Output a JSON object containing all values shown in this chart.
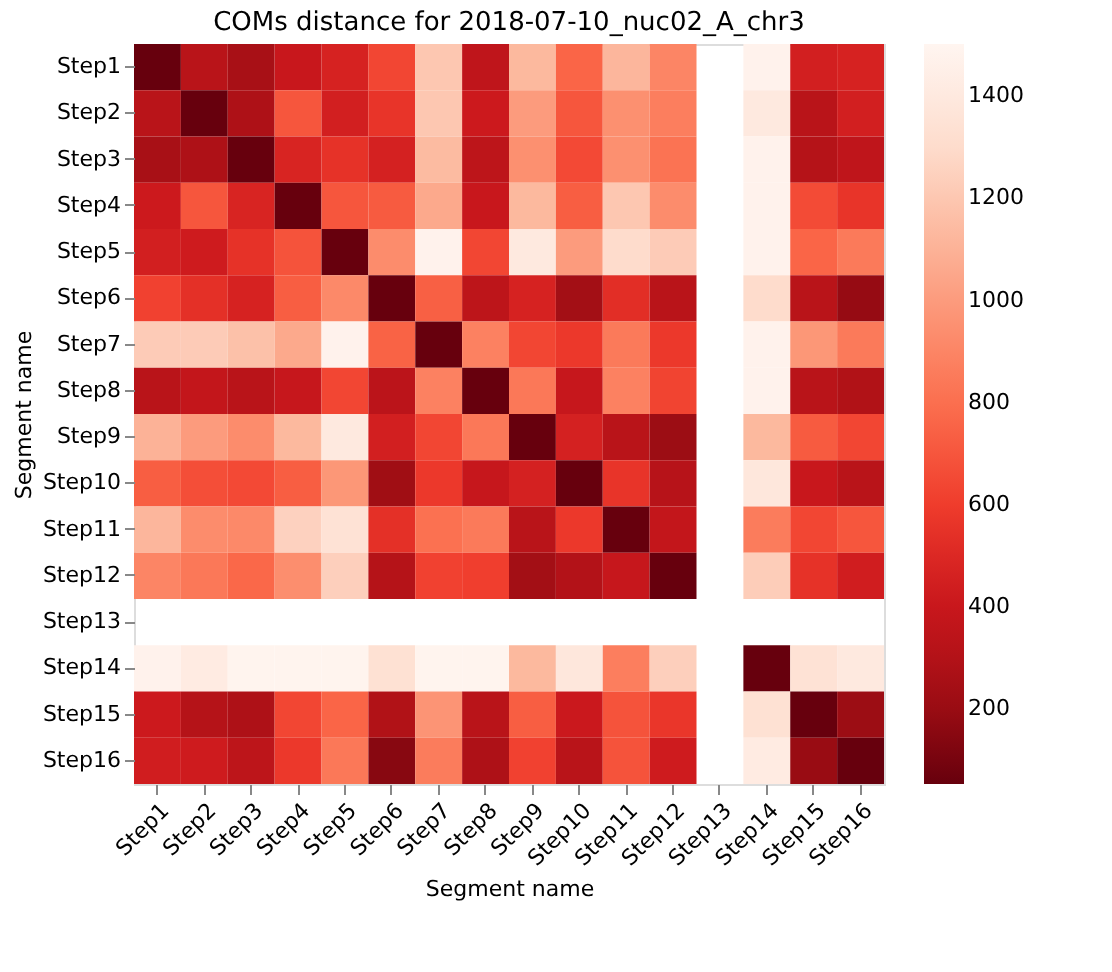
{
  "chart_data": {
    "type": "heatmap",
    "title": "COMs distance for 2018-07-10_nuc02_A_chr3",
    "xlabel": "Segment name",
    "ylabel": "Segment name",
    "categories": [
      "Step1",
      "Step2",
      "Step3",
      "Step4",
      "Step5",
      "Step6",
      "Step7",
      "Step8",
      "Step9",
      "Step10",
      "Step11",
      "Step12",
      "Step13",
      "Step14",
      "Step15",
      "Step16"
    ],
    "y_categories": [
      "Step1",
      "Step2",
      "Step3",
      "Step4",
      "Step5",
      "Step6",
      "Step7",
      "Step8",
      "Step9",
      "Step10",
      "Step11",
      "Step12",
      "Step13",
      "Step14",
      "Step15",
      "Step16"
    ],
    "cells": [
      [
        54,
        330,
        250,
        400,
        470,
        640,
        1200,
        360,
        1130,
        760,
        1120,
        900,
        null,
        1480,
        450,
        470
      ],
      [
        330,
        54,
        280,
        700,
        450,
        560,
        1200,
        420,
        1000,
        700,
        950,
        870,
        null,
        1400,
        330,
        450
      ],
      [
        250,
        280,
        54,
        480,
        550,
        460,
        1140,
        350,
        950,
        650,
        950,
        820,
        null,
        1480,
        310,
        360
      ],
      [
        420,
        700,
        480,
        54,
        700,
        720,
        1060,
        400,
        1130,
        730,
        1200,
        930,
        null,
        1480,
        660,
        560
      ],
      [
        450,
        430,
        550,
        690,
        54,
        930,
        1480,
        640,
        1400,
        1000,
        1300,
        1220,
        null,
        1480,
        760,
        850
      ],
      [
        620,
        540,
        470,
        730,
        920,
        54,
        740,
        350,
        470,
        230,
        530,
        330,
        null,
        1300,
        330,
        190
      ],
      [
        1220,
        1220,
        1170,
        1060,
        1480,
        750,
        54,
        880,
        640,
        580,
        850,
        580,
        null,
        1480,
        980,
        850
      ],
      [
        330,
        380,
        330,
        390,
        640,
        340,
        880,
        54,
        840,
        390,
        880,
        630,
        null,
        1480,
        330,
        290
      ],
      [
        1100,
        1000,
        930,
        1130,
        1400,
        450,
        640,
        840,
        54,
        460,
        330,
        210,
        null,
        1130,
        720,
        640
      ],
      [
        730,
        670,
        650,
        730,
        980,
        220,
        580,
        390,
        460,
        54,
        560,
        320,
        null,
        1380,
        400,
        330
      ],
      [
        1120,
        930,
        920,
        1250,
        1340,
        540,
        810,
        850,
        330,
        580,
        54,
        380,
        null,
        860,
        640,
        700
      ],
      [
        900,
        840,
        770,
        940,
        1240,
        310,
        620,
        610,
        230,
        300,
        390,
        54,
        null,
        1230,
        550,
        440
      ],
      [
        null,
        null,
        null,
        null,
        null,
        null,
        null,
        null,
        null,
        null,
        null,
        null,
        null,
        null,
        null,
        null
      ],
      [
        1480,
        1420,
        1490,
        1490,
        1490,
        1330,
        1490,
        1490,
        1130,
        1380,
        870,
        1240,
        null,
        54,
        1340,
        1400
      ],
      [
        420,
        310,
        280,
        640,
        760,
        290,
        970,
        330,
        730,
        410,
        690,
        570,
        null,
        1330,
        54,
        210
      ],
      [
        440,
        430,
        350,
        580,
        840,
        150,
        860,
        280,
        620,
        330,
        690,
        430,
        null,
        1420,
        200,
        54
      ]
    ],
    "clim": [
      54,
      1502
    ],
    "cticks": [
      200,
      400,
      600,
      800,
      1000,
      1200,
      1400
    ]
  }
}
